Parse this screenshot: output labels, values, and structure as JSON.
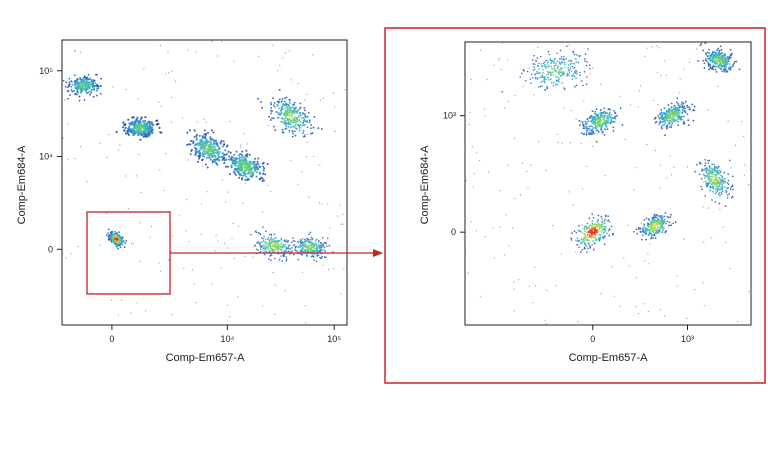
{
  "accent_color": "#c4242b",
  "chart_data": [
    {
      "type": "scatter",
      "name": "full-plot",
      "xlabel": "Comp-Em657-A",
      "ylabel": "Comp-Em684-A",
      "x_ticks": [
        {
          "label": "0",
          "value": 0
        },
        {
          "label": "10⁴",
          "value": 10000
        },
        {
          "label": "10⁵",
          "value": 100000
        }
      ],
      "y_ticks": [
        {
          "label": "0",
          "value": 0
        },
        {
          "label": "10⁴",
          "value": 10000
        },
        {
          "label": "10⁵",
          "value": 100000
        }
      ],
      "colormap": [
        "#1f3f9f",
        "#2b8fd0",
        "#39c0b0",
        "#79d05a",
        "#e8e04a",
        "#e0302a"
      ],
      "populations": [
        {
          "x": -800,
          "y": 68000,
          "density": 0.45
        },
        {
          "x": 800,
          "y": 22000,
          "density": 0.5
        },
        {
          "x": 6500,
          "y": 12500,
          "density": 0.5
        },
        {
          "x": 15000,
          "y": 7500,
          "density": 0.5
        },
        {
          "x": 40000,
          "y": 30000,
          "density": 0.55
        },
        {
          "x": 28000,
          "y": 100,
          "density": 0.6
        },
        {
          "x": 60000,
          "y": 50,
          "density": 0.55
        },
        {
          "x": 100,
          "y": 300,
          "density": 0.95
        }
      ],
      "gate_region": {
        "x": [
          -800,
          3500
        ],
        "y": [
          -800,
          3000
        ]
      }
    },
    {
      "type": "scatter",
      "name": "zoom-plot",
      "xlabel": "Comp-Em657-A",
      "ylabel": "Comp-Em684-A",
      "x_ticks": [
        {
          "label": "0",
          "value": 0
        },
        {
          "label": "10³",
          "value": 1000
        }
      ],
      "y_ticks": [
        {
          "label": "0",
          "value": 0
        },
        {
          "label": "10³",
          "value": 1000
        }
      ],
      "colormap": [
        "#1f3f9f",
        "#2b8fd0",
        "#39c0b0",
        "#79d05a",
        "#e8e04a",
        "#e0302a"
      ],
      "populations": [
        {
          "x": -200,
          "y": 2200,
          "density": 0.45
        },
        {
          "x": 2000,
          "y": 2600,
          "density": 0.55
        },
        {
          "x": 30,
          "y": 900,
          "density": 0.55
        },
        {
          "x": 700,
          "y": 1000,
          "density": 0.55
        },
        {
          "x": 0,
          "y": 0,
          "density": 1.0
        },
        {
          "x": 450,
          "y": 20,
          "density": 0.7
        },
        {
          "x": 1800,
          "y": 250,
          "density": 0.6
        }
      ]
    }
  ]
}
